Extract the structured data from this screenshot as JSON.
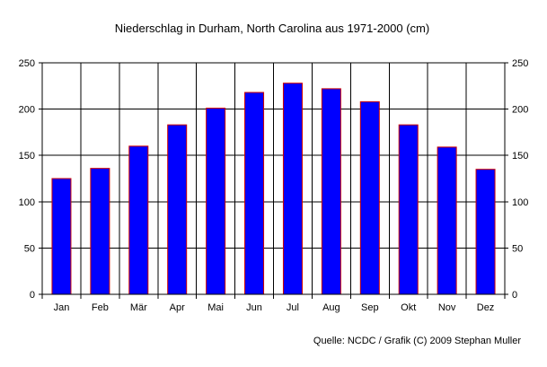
{
  "chart_data": {
    "type": "bar",
    "title": "Niederschlag in Durham, North Carolina aus 1971-2000 (cm)",
    "xlabel": "",
    "ylabel": "",
    "categories": [
      "Jan",
      "Feb",
      "Mär",
      "Apr",
      "Mai",
      "Jun",
      "Jul",
      "Aug",
      "Sep",
      "Okt",
      "Nov",
      "Dez"
    ],
    "values": [
      125,
      136,
      160,
      183,
      201,
      218,
      228,
      222,
      208,
      183,
      159,
      135
    ],
    "ylim": [
      0,
      250
    ],
    "yticks": [
      0,
      50,
      100,
      150,
      200,
      250
    ],
    "ytick_labels": [
      "0",
      "50",
      "100",
      "150",
      "200",
      "250"
    ],
    "grid": true,
    "legend": "none",
    "bar_color": "#0000ff",
    "bar_edge_color": "#cc0000",
    "source": "Quelle: NCDC / Grafik (C) 2009 Stephan Muller"
  }
}
